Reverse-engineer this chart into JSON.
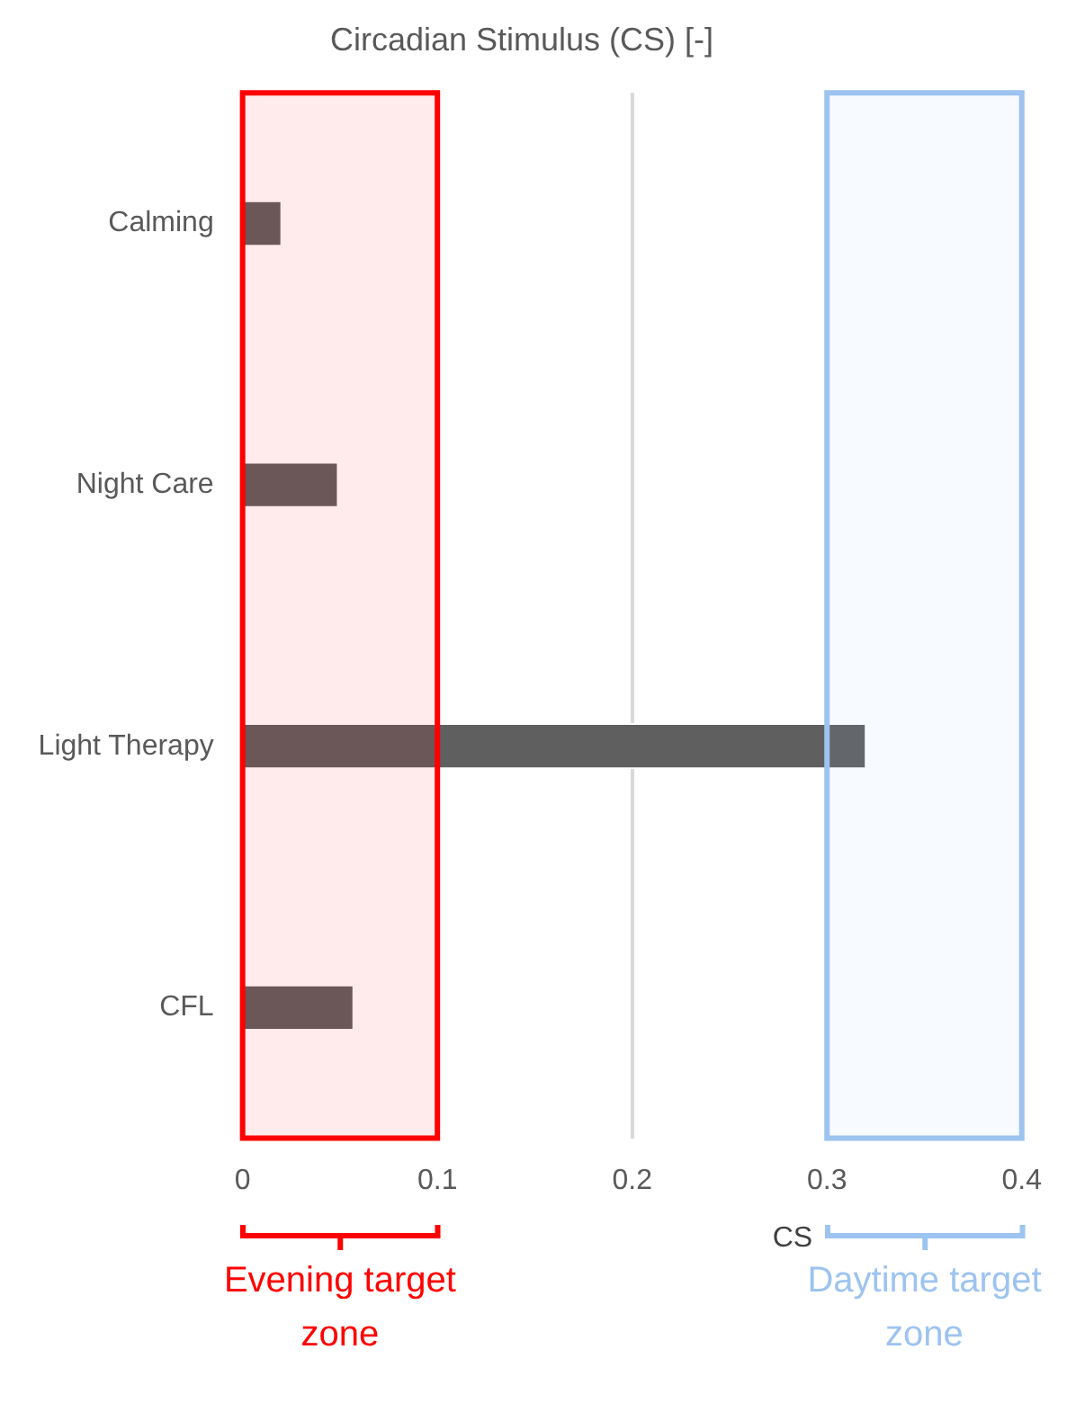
{
  "chart_data": {
    "type": "bar",
    "orientation": "horizontal",
    "title": "Circadian Stimulus (CS) [-]",
    "xlabel": "CS",
    "categories": [
      "Calming",
      "Night Care",
      "Light Therapy",
      "CFL"
    ],
    "values": [
      0.02,
      0.049,
      0.32,
      0.057
    ],
    "color": "#5f5f5f",
    "legend": "bottom",
    "xlim": [
      0,
      0.4
    ],
    "xticks": [
      0,
      0.1,
      0.2,
      0.3,
      0.4
    ],
    "grid": "x",
    "bands": [
      {
        "axis": "x",
        "from": 0,
        "to": 0.1,
        "label": "Evening target zone",
        "color": "#ff0000"
      },
      {
        "axis": "x",
        "from": 0.3,
        "to": 0.4,
        "label": "Daytime target zone",
        "color": "#9dc3f0"
      }
    ]
  }
}
